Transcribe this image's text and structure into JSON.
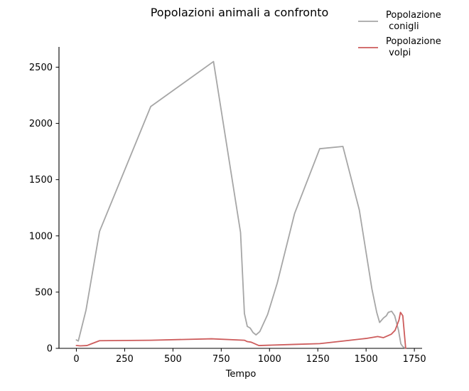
{
  "chart_data": {
    "type": "line",
    "title": "Popolazioni animali a confronto",
    "xlabel": "Tempo",
    "ylabel": "",
    "xlim": [
      -90,
      1790
    ],
    "ylim": [
      0,
      2680
    ],
    "xticks": [
      0,
      250,
      500,
      750,
      1000,
      1250,
      1500,
      1750
    ],
    "yticks": [
      0,
      500,
      1000,
      1500,
      2000,
      2500
    ],
    "grid": false,
    "legend_position": "top-right",
    "series": [
      {
        "name": "Popolazione\n conigli",
        "color": "#a6a6a6",
        "points": [
          [
            0,
            75
          ],
          [
            10,
            65
          ],
          [
            50,
            340
          ],
          [
            120,
            1040
          ],
          [
            385,
            2150
          ],
          [
            710,
            2550
          ],
          [
            850,
            1030
          ],
          [
            870,
            310
          ],
          [
            885,
            195
          ],
          [
            900,
            180
          ],
          [
            915,
            140
          ],
          [
            930,
            120
          ],
          [
            950,
            150
          ],
          [
            990,
            300
          ],
          [
            1040,
            580
          ],
          [
            1130,
            1200
          ],
          [
            1260,
            1775
          ],
          [
            1380,
            1795
          ],
          [
            1465,
            1230
          ],
          [
            1530,
            530
          ],
          [
            1555,
            320
          ],
          [
            1570,
            230
          ],
          [
            1590,
            270
          ],
          [
            1605,
            290
          ],
          [
            1615,
            320
          ],
          [
            1632,
            330
          ],
          [
            1648,
            290
          ],
          [
            1668,
            160
          ],
          [
            1680,
            40
          ],
          [
            1690,
            15
          ],
          [
            1705,
            0
          ]
        ]
      },
      {
        "name": "Popolazione\n volpi",
        "color": "#cd5c5c",
        "points": [
          [
            0,
            25
          ],
          [
            20,
            22
          ],
          [
            55,
            25
          ],
          [
            120,
            68
          ],
          [
            385,
            72
          ],
          [
            700,
            85
          ],
          [
            870,
            72
          ],
          [
            885,
            60
          ],
          [
            905,
            55
          ],
          [
            945,
            25
          ],
          [
            1000,
            28
          ],
          [
            1130,
            35
          ],
          [
            1260,
            42
          ],
          [
            1380,
            65
          ],
          [
            1500,
            88
          ],
          [
            1560,
            105
          ],
          [
            1590,
            95
          ],
          [
            1630,
            125
          ],
          [
            1650,
            160
          ],
          [
            1670,
            250
          ],
          [
            1678,
            320
          ],
          [
            1690,
            290
          ],
          [
            1705,
            0
          ]
        ]
      }
    ]
  }
}
